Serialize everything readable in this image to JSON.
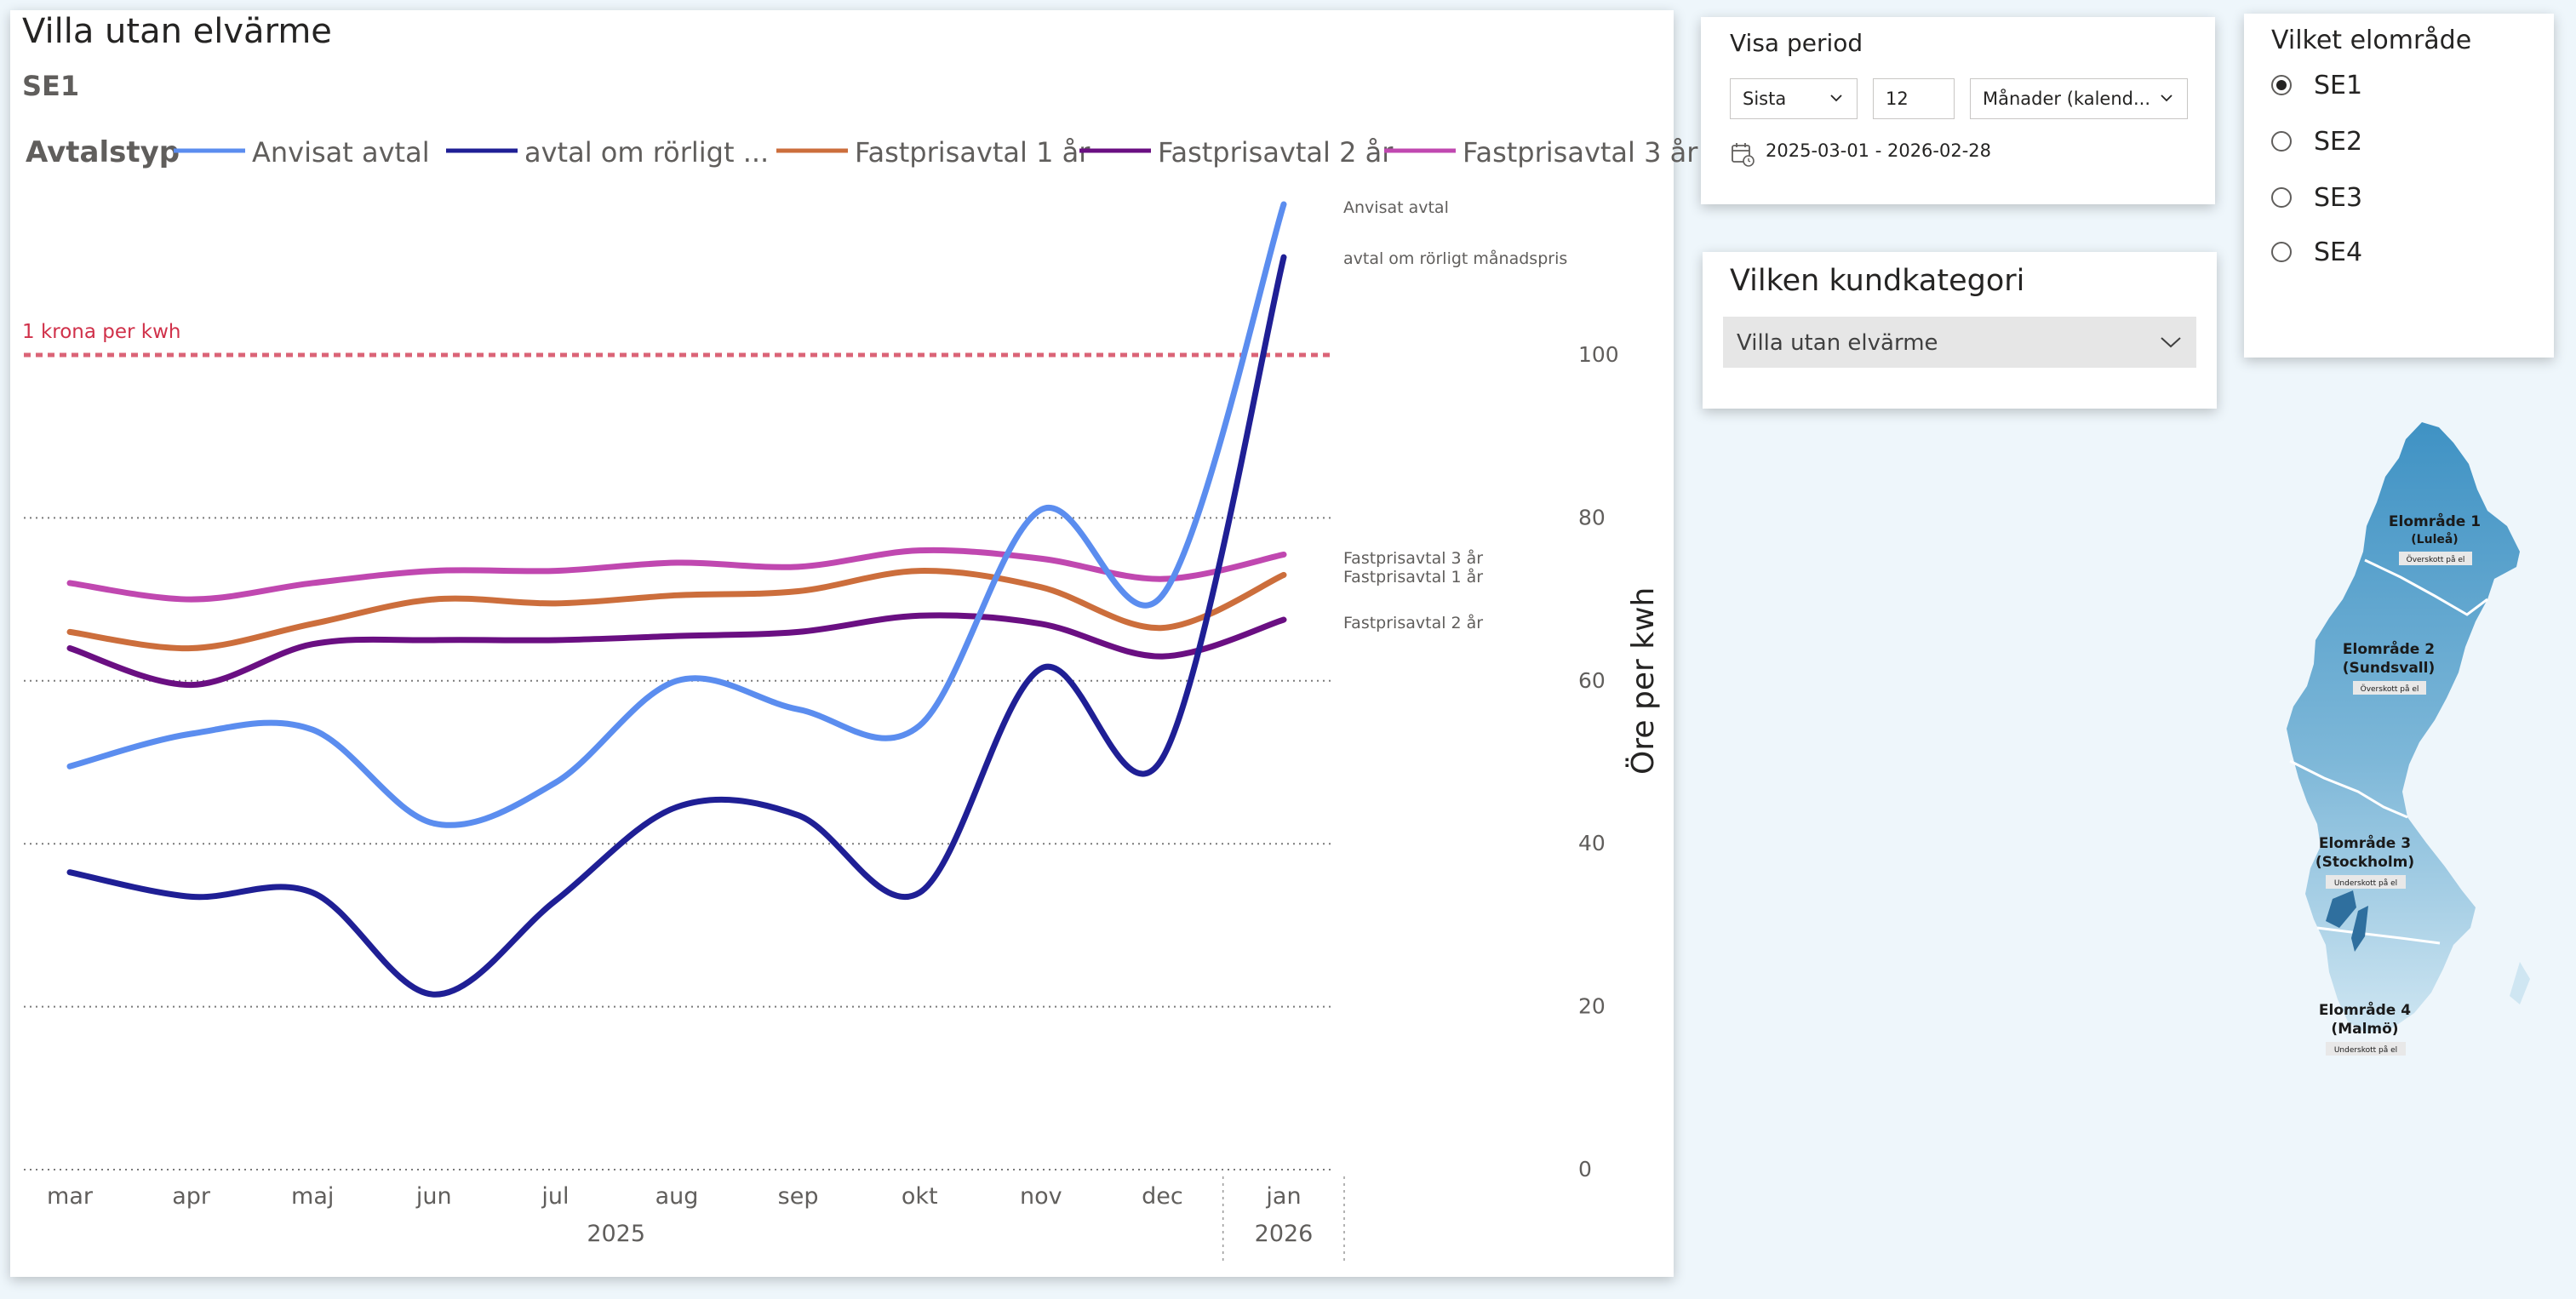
{
  "chart_data": {
    "type": "line",
    "title": "Villa utan elvärme",
    "subtitle": "SE1",
    "legend_title": "Avtalstyp",
    "legend": [
      "Anvisat avtal",
      "avtal om rörligt ...",
      "Fastprisavtal 1 år",
      "Fastprisavtal 2 år",
      "Fastprisavtal 3 år"
    ],
    "x": [
      "mar",
      "apr",
      "maj",
      "jun",
      "jul",
      "aug",
      "sep",
      "okt",
      "nov",
      "dec",
      "jan"
    ],
    "x_groups": [
      {
        "label": "2025",
        "from": 0,
        "to": 9
      },
      {
        "label": "2026",
        "from": 10,
        "to": 10
      }
    ],
    "ylabel": "Öre per kwh",
    "ylim": [
      0,
      120
    ],
    "yticks": [
      0,
      20,
      40,
      60,
      80,
      100
    ],
    "y_axis_position": "right",
    "grid": true,
    "reference_line": {
      "label": "1 krona per kwh",
      "value": 100,
      "color": "#d0314a"
    },
    "series": [
      {
        "name": "Anvisat avtal",
        "end_label": "Anvisat avtal",
        "color": "#5b8def",
        "values": [
          49.5,
          53.5,
          54,
          42.5,
          47.5,
          60,
          56.5,
          54.5,
          81,
          70.5,
          118.5
        ]
      },
      {
        "name": "avtal om rörligt månadspris",
        "end_label": "avtal om rörligt månadspris",
        "color": "#1f1f95",
        "values": [
          36.5,
          33.5,
          34,
          21.5,
          33,
          44.5,
          43.5,
          34,
          61.5,
          50.5,
          112
        ]
      },
      {
        "name": "Fastprisavtal 1 år",
        "end_label": "Fastprisavtal 1 år",
        "color": "#cc6e3c",
        "values": [
          66,
          64,
          67,
          70,
          69.5,
          70.5,
          71,
          73.5,
          71.5,
          66.5,
          73
        ]
      },
      {
        "name": "Fastprisavtal 2 år",
        "end_label": "Fastprisavtal 2 år",
        "color": "#6a0f82",
        "values": [
          64,
          59.5,
          64.5,
          65,
          65,
          65.5,
          66,
          68,
          67,
          63,
          67.5
        ]
      },
      {
        "name": "Fastprisavtal 3 år",
        "end_label": "Fastprisavtal 3 år",
        "color": "#c048b0",
        "values": [
          72,
          70,
          72,
          73.5,
          73.5,
          74.5,
          74,
          76,
          75,
          72.5,
          75.5
        ]
      }
    ]
  },
  "period": {
    "title": "Visa period",
    "relative": "Sista",
    "count": "12",
    "unit": "Månader (kalend...",
    "range": "2025-03-01 - 2026-02-28"
  },
  "kundkategori": {
    "title": "Vilken kundkategori",
    "selected": "Villa utan elvärme"
  },
  "elomrade": {
    "title": "Vilket elområde",
    "options": [
      "SE1",
      "SE2",
      "SE3",
      "SE4"
    ],
    "selected": "SE1"
  },
  "map": {
    "areas": [
      {
        "name": "Elområde 1",
        "city": "(Luleå)",
        "badge": "Överskott på el"
      },
      {
        "name": "Elområde 2",
        "city": "(Sundsvall)",
        "badge": "Överskott på el"
      },
      {
        "name": "Elområde 3",
        "city": "(Stockholm)",
        "badge": "Underskott på el"
      },
      {
        "name": "Elområde 4",
        "city": "(Malmö)",
        "badge": "Underskott på el"
      }
    ]
  }
}
